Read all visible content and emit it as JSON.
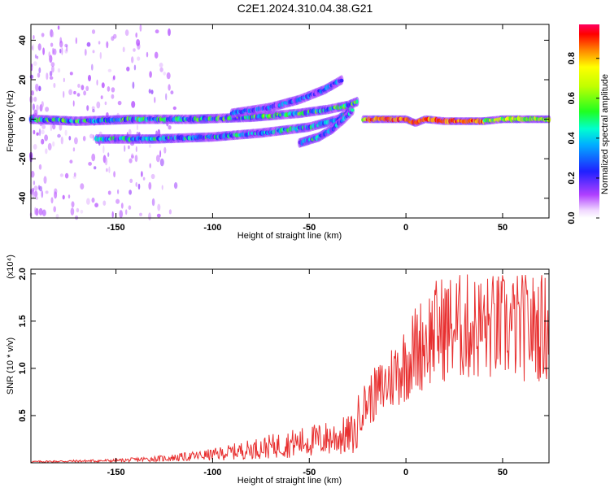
{
  "title": "C2E1.2024.310.04.38.G21",
  "chart_data": [
    {
      "type": "heatmap",
      "xlabel": "Height of straight line (km)",
      "ylabel": "Frequency (Hz)",
      "xlim": [
        -194,
        74
      ],
      "ylim": [
        -50,
        48
      ],
      "xticks": [
        -150,
        -100,
        -50,
        0,
        50
      ],
      "yticks": [
        -40,
        -20,
        0,
        20,
        40
      ],
      "colorbar": {
        "label": "Normalized spectral amplitude",
        "range": [
          0.0,
          0.97
        ],
        "ticks": [
          0.0,
          0.2,
          0.4,
          0.6,
          0.8
        ],
        "tick_labels": [
          "0.0",
          "0.2",
          "0.4",
          "0.6",
          "0.8"
        ]
      },
      "tracks": [
        {
          "x": [
            -194,
            -170,
            -140,
            -110,
            -80,
            -55,
            -40,
            -30,
            -25
          ],
          "y": [
            0,
            -1,
            0,
            0,
            1,
            3,
            5,
            7,
            9
          ],
          "amp": 0.4
        },
        {
          "x": [
            -160,
            -130,
            -100,
            -75,
            -50,
            -35,
            -28
          ],
          "y": [
            -10,
            -10,
            -9,
            -7,
            -4,
            0,
            5
          ],
          "amp": 0.35
        },
        {
          "x": [
            -90,
            -70,
            -55,
            -42,
            -33
          ],
          "y": [
            3,
            6,
            10,
            15,
            20
          ],
          "amp": 0.25
        },
        {
          "x": [
            -55,
            -45,
            -38,
            -32,
            -27
          ],
          "y": [
            -12,
            -9,
            -5,
            0,
            5
          ],
          "amp": 0.35
        },
        {
          "x": [
            -22,
            -10,
            0,
            5,
            10,
            20,
            30,
            40,
            50,
            60,
            70,
            74
          ],
          "y": [
            0,
            0,
            0,
            -2,
            0,
            -1,
            -1,
            -1,
            0,
            0,
            0,
            0
          ],
          "amp": 0.9
        }
      ]
    },
    {
      "type": "line",
      "xlabel": "Height of straight line (km)",
      "ylabel": "SNR (10 * v/v)",
      "y_multiplier": "(x10⁴)",
      "xlim": [
        -194,
        74
      ],
      "ylim": [
        0,
        2.05
      ],
      "xticks": [
        -150,
        -100,
        -50,
        0,
        50
      ],
      "yticks": [
        0.5,
        1.0,
        1.5,
        2.0
      ],
      "ytick_labels": [
        "0.5",
        "1.0",
        "1.5",
        "2.0"
      ],
      "series": [
        {
          "color": "#e83030",
          "envelope_x": [
            -194,
            -150,
            -125,
            -110,
            -100,
            -90,
            -80,
            -70,
            -60,
            -50,
            -40,
            -30,
            -25,
            -20,
            -15,
            -10,
            -5,
            0,
            5,
            10,
            15,
            20,
            25,
            30,
            35,
            40,
            50,
            60,
            70,
            74
          ],
          "envelope_y": [
            0.02,
            0.04,
            0.08,
            0.12,
            0.15,
            0.2,
            0.25,
            0.3,
            0.35,
            0.4,
            0.45,
            0.5,
            0.55,
            0.7,
            0.8,
            0.9,
            1.05,
            1.15,
            1.3,
            1.4,
            1.5,
            1.55,
            1.55,
            1.55,
            1.55,
            1.55,
            1.55,
            1.55,
            1.55,
            1.55
          ]
        }
      ]
    }
  ]
}
